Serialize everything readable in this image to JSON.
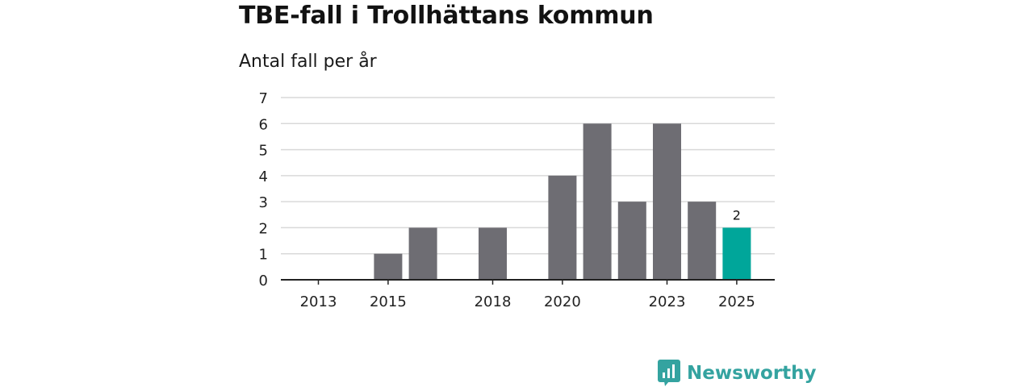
{
  "title": "TBE-fall i Trollhättans kommun",
  "subtitle": "Antal fall per år",
  "brand": {
    "name": "Newsworthy"
  },
  "colors": {
    "bar": "#6e6d73",
    "highlight": "#00a69a",
    "grid": "#d9d9d9",
    "axis": "#222222",
    "brand": "#34a3a0"
  },
  "chart_data": {
    "type": "bar",
    "title": "TBE-fall i Trollhättans kommun",
    "ylabel": "Antal fall per år",
    "xlabel": "",
    "categories": [
      "2013",
      "2014",
      "2015",
      "2016",
      "2017",
      "2018",
      "2019",
      "2020",
      "2021",
      "2022",
      "2023",
      "2024",
      "2025"
    ],
    "values": [
      0,
      0,
      1,
      2,
      0,
      2,
      0,
      4,
      6,
      3,
      6,
      3,
      2
    ],
    "x_tick_labels": [
      "2013",
      "2015",
      "2018",
      "2020",
      "2023",
      "2025"
    ],
    "ylim": [
      0,
      7
    ],
    "y_ticks": [
      0,
      1,
      2,
      3,
      4,
      5,
      6,
      7
    ],
    "highlight_category": "2025",
    "data_labels": [
      {
        "category": "2025",
        "text": "2"
      }
    ],
    "grid": true,
    "legend": "none"
  }
}
